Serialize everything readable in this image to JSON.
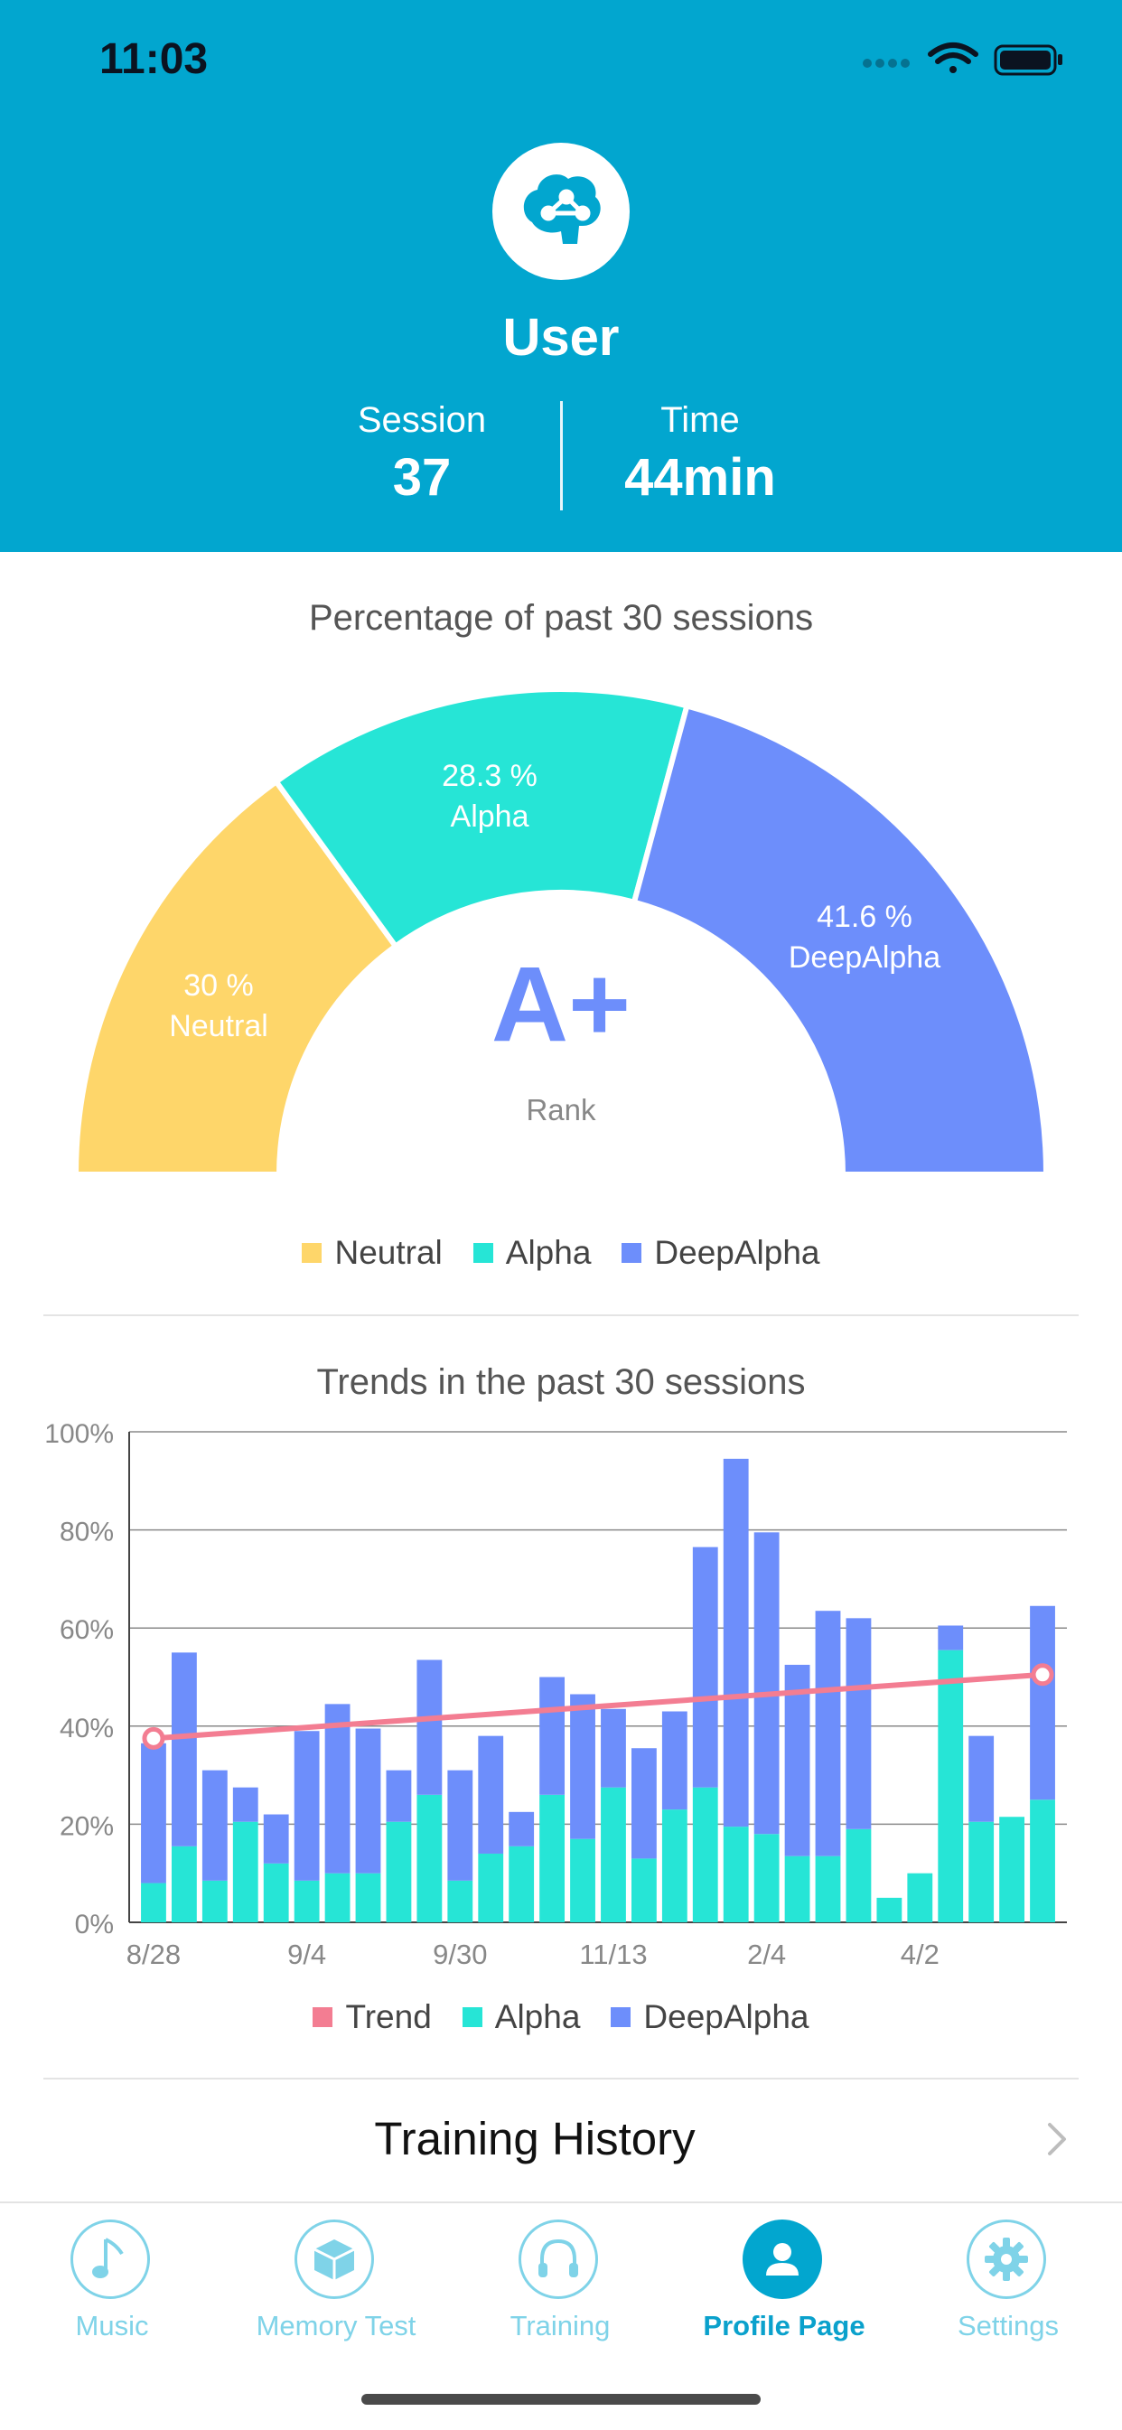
{
  "status_bar": {
    "time": "11:03"
  },
  "profile": {
    "name": "User",
    "session_label": "Session",
    "session_value": "37",
    "time_label": "Time",
    "time_value": "44min"
  },
  "gauge": {
    "title": "Percentage of past 30 sessions",
    "segments": [
      {
        "name": "Neutral",
        "percent_label": "30 %",
        "value": 30,
        "color": "#fed66a"
      },
      {
        "name": "Alpha",
        "percent_label": "28.3 %",
        "value": 28.3,
        "color": "#26e5d6"
      },
      {
        "name": "DeepAlpha",
        "percent_label": "41.6 %",
        "value": 41.6,
        "color": "#6d8efb"
      }
    ],
    "rank": "A+",
    "rank_label": "Rank",
    "legend": [
      "Neutral",
      "Alpha",
      "DeepAlpha"
    ]
  },
  "trends": {
    "title": "Trends in the past 30 sessions",
    "legend": [
      "Trend",
      "Alpha",
      "DeepAlpha"
    ],
    "colors": {
      "trend": "#f37d92",
      "alpha": "#26e5d6",
      "deep": "#6d8efb"
    }
  },
  "chart_data": {
    "type": "bar",
    "stacked": true,
    "title": "Trends in the past 30 sessions",
    "y_tick_labels": [
      "0%",
      "20%",
      "40%",
      "60%",
      "80%",
      "100%"
    ],
    "ylim": [
      0,
      100
    ],
    "x_tick_labels": [
      {
        "index": 0,
        "label": "8/28"
      },
      {
        "index": 5,
        "label": "9/4"
      },
      {
        "index": 10,
        "label": "9/30"
      },
      {
        "index": 15,
        "label": "11/13"
      },
      {
        "index": 20,
        "label": "2/4"
      },
      {
        "index": 25,
        "label": "4/2"
      }
    ],
    "series": [
      {
        "name": "Alpha",
        "values": [
          8,
          15.5,
          8.5,
          20.5,
          12,
          8.5,
          10,
          10,
          20.5,
          26,
          8.5,
          14,
          15.5,
          26,
          17,
          27.5,
          13,
          23,
          27.5,
          19.5,
          18,
          13.5,
          13.5,
          19,
          5,
          10,
          55.5,
          20.5,
          21.5,
          25
        ]
      },
      {
        "name": "DeepAlpha",
        "values": [
          28.5,
          39.5,
          22.5,
          7,
          10,
          30.5,
          34.5,
          29.5,
          10.5,
          27.5,
          22.5,
          24,
          7,
          24,
          29.5,
          16,
          22.5,
          20,
          49,
          75,
          61.5,
          39,
          50,
          43,
          0,
          0,
          5,
          17.5,
          0,
          39.5
        ]
      },
      {
        "name": "Trend",
        "type": "line",
        "start": 37.5,
        "end": 50.5
      }
    ],
    "grid": true,
    "legend_position": "bottom"
  },
  "history": {
    "label": "Training History"
  },
  "tabs": [
    {
      "label": "Music",
      "icon": "music-note-icon",
      "active": false
    },
    {
      "label": "Memory Test",
      "icon": "cube-icon",
      "active": false
    },
    {
      "label": "Training",
      "icon": "headphones-icon",
      "active": false
    },
    {
      "label": "Profile Page",
      "icon": "person-icon",
      "active": true
    },
    {
      "label": "Settings",
      "icon": "gear-icon",
      "active": false
    }
  ]
}
